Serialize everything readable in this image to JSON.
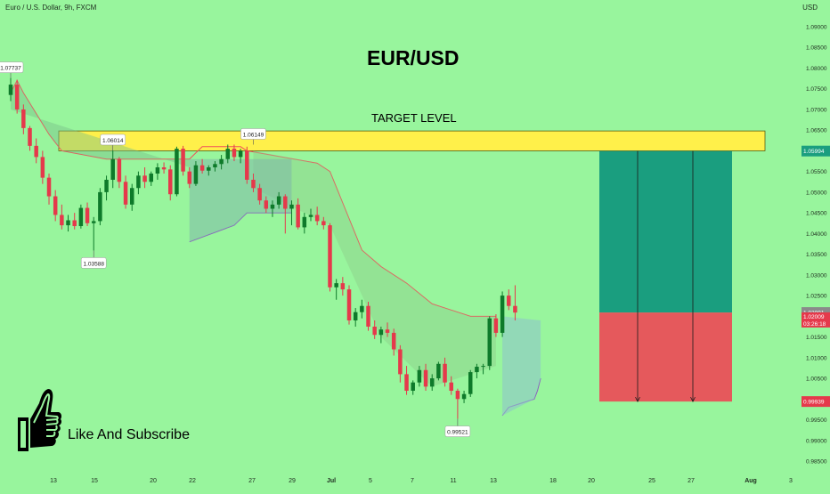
{
  "header": {
    "symbol_info": "Euro / U.S. Dollar, 9h, FXCM",
    "currency": "USD"
  },
  "annotations": {
    "title": "EUR/USD",
    "target_level_label": "TARGET LEVEL",
    "like_text": "Like And Subscribe",
    "price_callouts": [
      "1.07737",
      "1.06014",
      "1.06149",
      "1.03588",
      "0.99521"
    ]
  },
  "axis_badges": {
    "target": "1.05994",
    "last_price": "1.02091",
    "countdown_price": "1.02009",
    "countdown_time": "03:26:18",
    "stop": "0.99939"
  },
  "colors": {
    "background": "#98f59d",
    "up_candle": "#0e7a2a",
    "down_candle": "#e5394b",
    "target_band": "#fff04a",
    "profit_zone": "#1a9e7f",
    "loss_zone": "#e5595c",
    "stop_line_red": "#f0505a",
    "stop_line_purple": "#8a5cc0"
  },
  "chart_data": {
    "type": "candlestick",
    "y_ticks": [
      "1.09000",
      "1.08500",
      "1.08000",
      "1.07500",
      "1.07000",
      "1.06500",
      "1.06000",
      "1.05500",
      "1.05000",
      "1.04500",
      "1.04000",
      "1.03500",
      "1.03000",
      "1.02500",
      "1.02000",
      "1.01500",
      "1.01000",
      "1.00500",
      "1.00000",
      "0.99500",
      "0.99000",
      "0.98500"
    ],
    "x_ticks": [
      "13",
      "15",
      "20",
      "22",
      "27",
      "29",
      "Jul",
      "5",
      "7",
      "11",
      "13",
      "18",
      "20",
      "25",
      "27",
      "Aug",
      "3"
    ],
    "ylim": [
      0.985,
      1.09
    ],
    "ohlc": [
      [
        1.0735,
        1.0776,
        1.072,
        1.076
      ],
      [
        1.076,
        1.0772,
        1.069,
        1.07
      ],
      [
        1.07,
        1.0712,
        1.064,
        1.0655
      ],
      [
        1.0655,
        1.066,
        1.06,
        1.0612
      ],
      [
        1.0612,
        1.063,
        1.057,
        1.0585
      ],
      [
        1.0585,
        1.06,
        1.052,
        1.0535
      ],
      [
        1.0535,
        1.0545,
        1.047,
        1.049
      ],
      [
        1.049,
        1.0505,
        1.043,
        1.0445
      ],
      [
        1.0445,
        1.047,
        1.041,
        1.042
      ],
      [
        1.042,
        1.0445,
        1.0405,
        1.0432
      ],
      [
        1.0432,
        1.045,
        1.041,
        1.0418
      ],
      [
        1.0418,
        1.047,
        1.0412,
        1.0462
      ],
      [
        1.0462,
        1.0475,
        1.0418,
        1.0425
      ],
      [
        1.0425,
        1.044,
        1.0359,
        1.043
      ],
      [
        1.043,
        1.051,
        1.042,
        1.05
      ],
      [
        1.05,
        1.054,
        1.048,
        1.053
      ],
      [
        1.053,
        1.0601,
        1.051,
        1.058
      ],
      [
        1.058,
        1.0585,
        1.051,
        1.0525
      ],
      [
        1.0525,
        1.054,
        1.046,
        1.047
      ],
      [
        1.047,
        1.052,
        1.0455,
        1.051
      ],
      [
        1.051,
        1.055,
        1.0495,
        1.054
      ],
      [
        1.054,
        1.056,
        1.051,
        1.0525
      ],
      [
        1.0525,
        1.055,
        1.0515,
        1.0545
      ],
      [
        1.0545,
        1.057,
        1.053,
        1.056
      ],
      [
        1.056,
        1.0572,
        1.0545,
        1.0555
      ],
      [
        1.0555,
        1.0565,
        1.048,
        1.0495
      ],
      [
        1.0495,
        1.061,
        1.049,
        1.0605
      ],
      [
        1.0605,
        1.0612,
        1.054,
        1.055
      ],
      [
        1.055,
        1.056,
        1.051,
        1.052
      ],
      [
        1.052,
        1.0575,
        1.0515,
        1.0565
      ],
      [
        1.0565,
        1.058,
        1.0545,
        1.0552
      ],
      [
        1.0552,
        1.0565,
        1.054,
        1.056
      ],
      [
        1.056,
        1.0575,
        1.055,
        1.0568
      ],
      [
        1.0568,
        1.059,
        1.0555,
        1.058
      ],
      [
        1.058,
        1.0615,
        1.057,
        1.0605
      ],
      [
        1.0605,
        1.0615,
        1.0575,
        1.0585
      ],
      [
        1.0585,
        1.0605,
        1.057,
        1.06
      ],
      [
        1.06,
        1.061,
        1.052,
        1.053
      ],
      [
        1.053,
        1.0545,
        1.05,
        1.051
      ],
      [
        1.051,
        1.052,
        1.047,
        1.048
      ],
      [
        1.048,
        1.049,
        1.045,
        1.046
      ],
      [
        1.046,
        1.048,
        1.044,
        1.047
      ],
      [
        1.047,
        1.05,
        1.046,
        1.049
      ],
      [
        1.049,
        1.0495,
        1.04,
        1.046
      ],
      [
        1.046,
        1.048,
        1.042,
        1.047
      ],
      [
        1.047,
        1.0485,
        1.041,
        1.0415
      ],
      [
        1.0415,
        1.045,
        1.04,
        1.044
      ],
      [
        1.044,
        1.046,
        1.043,
        1.0445
      ],
      [
        1.0445,
        1.0465,
        1.042,
        1.043
      ],
      [
        1.043,
        1.044,
        1.041,
        1.042
      ],
      [
        1.042,
        1.0425,
        1.026,
        1.027
      ],
      [
        1.027,
        1.029,
        1.024,
        1.028
      ],
      [
        1.028,
        1.0295,
        1.025,
        1.0265
      ],
      [
        1.0265,
        1.0275,
        1.018,
        1.019
      ],
      [
        1.019,
        1.022,
        1.0175,
        1.021
      ],
      [
        1.021,
        1.024,
        1.0195,
        1.0225
      ],
      [
        1.0225,
        1.0235,
        1.0165,
        1.0175
      ],
      [
        1.0175,
        1.019,
        1.0145,
        1.0155
      ],
      [
        1.0155,
        1.0175,
        1.0135,
        1.0168
      ],
      [
        1.0168,
        1.0185,
        1.015,
        1.016
      ],
      [
        1.016,
        1.017,
        1.0105,
        1.012
      ],
      [
        1.012,
        1.013,
        1.004,
        1.006
      ],
      [
        1.006,
        1.008,
        1.001,
        1.002
      ],
      [
        1.002,
        1.0045,
        1.001,
        1.004
      ],
      [
        1.004,
        1.008,
        1.003,
        1.007
      ],
      [
        1.007,
        1.0085,
        1.002,
        1.003
      ],
      [
        1.003,
        1.006,
        1.002,
        1.005
      ],
      [
        1.005,
        1.009,
        1.0045,
        1.0085
      ],
      [
        1.0085,
        1.01,
        1.003,
        1.004
      ],
      [
        1.004,
        1.0055,
        1.001,
        1.002
      ],
      [
        1.002,
        1.0025,
        0.9952,
        1.0
      ],
      [
        1.0,
        1.002,
        0.999,
        1.0012
      ],
      [
        1.0012,
        1.007,
        1.0005,
        1.0065
      ],
      [
        1.0065,
        1.0085,
        1.005,
        1.0078
      ],
      [
        1.0078,
        1.0085,
        1.006,
        1.008
      ],
      [
        1.008,
        1.02,
        1.007,
        1.0195
      ],
      [
        1.0195,
        1.0205,
        1.015,
        1.016
      ],
      [
        1.016,
        1.026,
        1.015,
        1.025
      ],
      [
        1.025,
        1.0265,
        1.0215,
        1.0225
      ],
      [
        1.0225,
        1.0275,
        1.019,
        1.0209
      ]
    ]
  }
}
